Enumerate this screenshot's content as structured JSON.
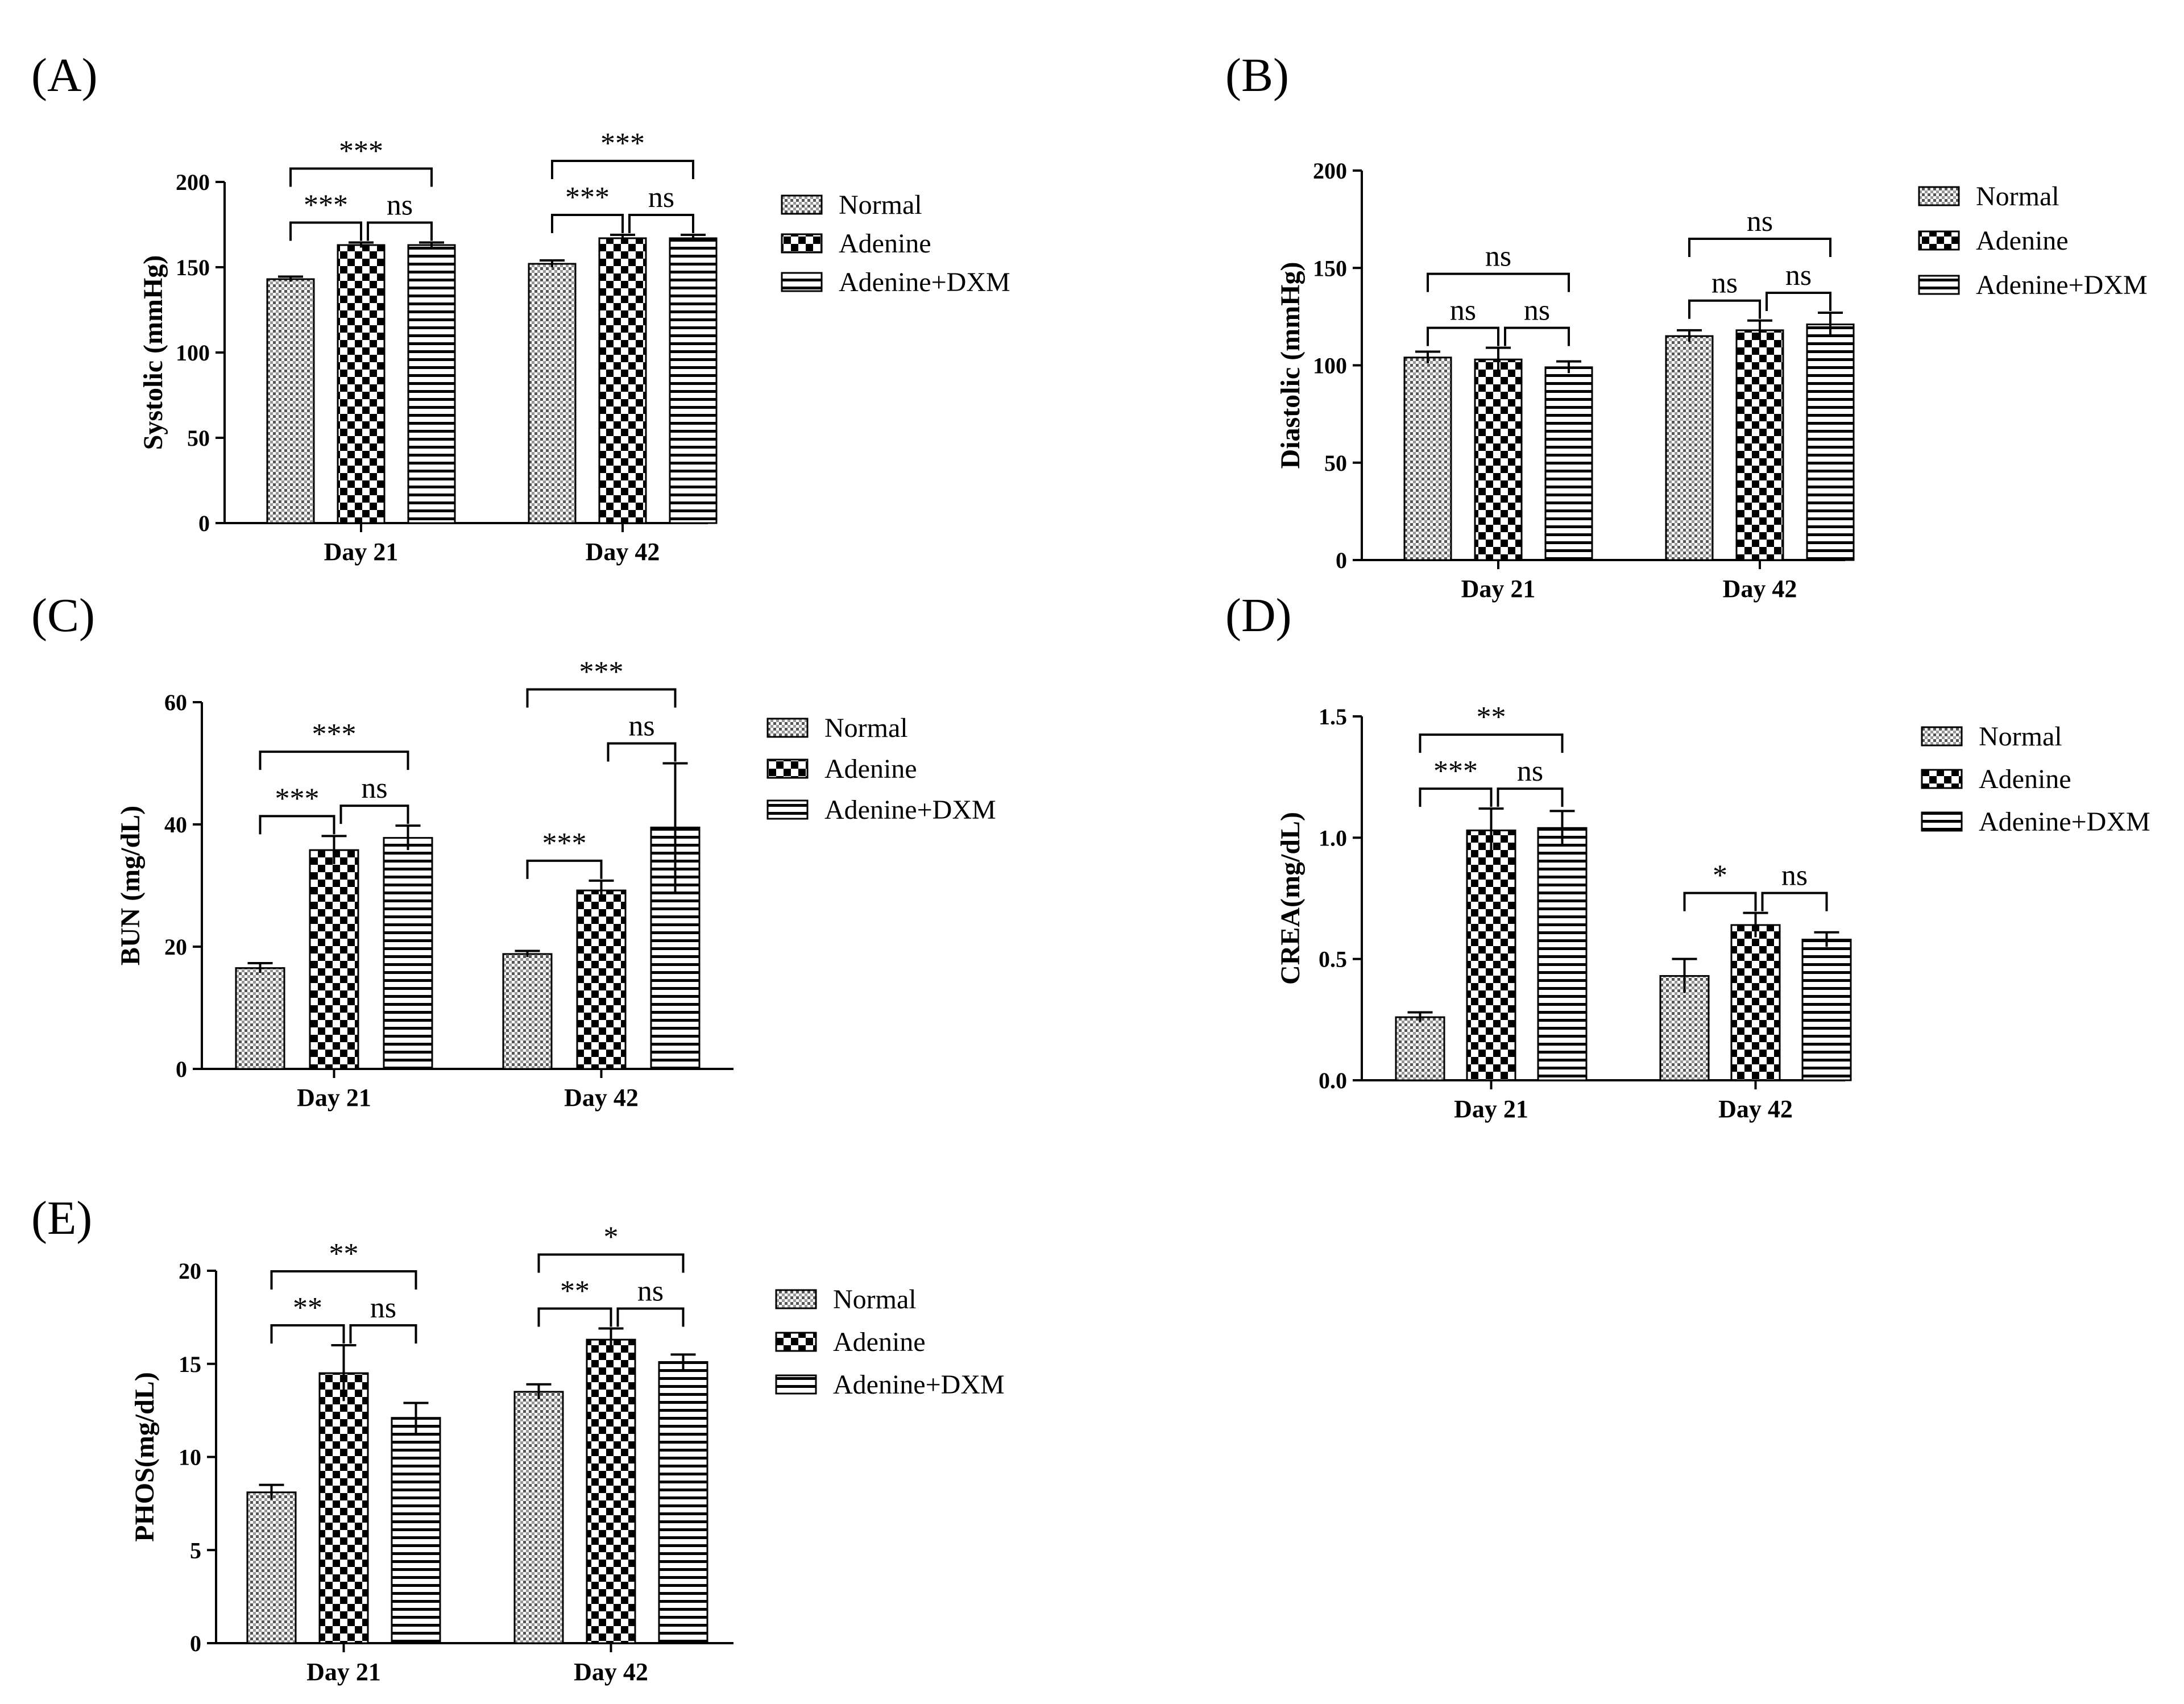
{
  "figure": {
    "patterns": {
      "Normal": "dots",
      "Adenine": "checker",
      "Adenine+DXM": "stripes"
    }
  },
  "chart_data": [
    {
      "panel": "(A)",
      "type": "bar",
      "title": "",
      "xlabel": "",
      "ylabel": "Systolic (mmHg)",
      "categories": [
        "Day 21",
        "Day 42"
      ],
      "ylim": [
        0,
        200
      ],
      "yticks": [
        "0",
        "50",
        "100",
        "150",
        "200"
      ],
      "series": [
        {
          "name": "Normal",
          "values": [
            143,
            152
          ],
          "errors": [
            1.5,
            2
          ]
        },
        {
          "name": "Adenine",
          "values": [
            163,
            167
          ],
          "errors": [
            1.5,
            2
          ]
        },
        {
          "name": "Adenine+DXM",
          "values": [
            163,
            167
          ],
          "errors": [
            1.5,
            2
          ]
        }
      ],
      "annotations": [
        {
          "label": "***",
          "cat": 0,
          "from": 0,
          "to": 1,
          "level": 0
        },
        {
          "label": "ns",
          "cat": 0,
          "from": 1,
          "to": 2,
          "level": 0
        },
        {
          "label": "***",
          "cat": 0,
          "from": 0,
          "to": 2,
          "level": 1
        },
        {
          "label": "***",
          "cat": 1,
          "from": 0,
          "to": 1,
          "level": 0
        },
        {
          "label": "ns",
          "cat": 1,
          "from": 1,
          "to": 2,
          "level": 0
        },
        {
          "label": "***",
          "cat": 1,
          "from": 0,
          "to": 2,
          "level": 1
        }
      ]
    },
    {
      "panel": "(B)",
      "type": "bar",
      "title": "",
      "xlabel": "",
      "ylabel": "Diastolic (mmHg)",
      "categories": [
        "Day 21",
        "Day 42"
      ],
      "ylim": [
        0,
        200
      ],
      "yticks": [
        "0",
        "50",
        "100",
        "150",
        "200"
      ],
      "series": [
        {
          "name": "Normal",
          "values": [
            104,
            115
          ],
          "errors": [
            3,
            3
          ]
        },
        {
          "name": "Adenine",
          "values": [
            103,
            118
          ],
          "errors": [
            6,
            5
          ]
        },
        {
          "name": "Adenine+DXM",
          "values": [
            99,
            121
          ],
          "errors": [
            3,
            6
          ]
        }
      ],
      "annotations": [
        {
          "label": "ns",
          "cat": 0,
          "from": 0,
          "to": 1,
          "level": 0
        },
        {
          "label": "ns",
          "cat": 0,
          "from": 1,
          "to": 2,
          "level": 0
        },
        {
          "label": "ns",
          "cat": 0,
          "from": 0,
          "to": 2,
          "level": 1
        },
        {
          "label": "ns",
          "cat": 1,
          "from": 0,
          "to": 1,
          "level": 0
        },
        {
          "label": "ns",
          "cat": 1,
          "from": 1,
          "to": 2,
          "level": 0
        },
        {
          "label": "ns",
          "cat": 1,
          "from": 0,
          "to": 2,
          "level": 1
        }
      ]
    },
    {
      "panel": "(C)",
      "type": "bar",
      "title": "",
      "xlabel": "",
      "ylabel": "BUN (mg/dL)",
      "categories": [
        "Day 21",
        "Day 42"
      ],
      "ylim": [
        0,
        60
      ],
      "yticks": [
        "0",
        "20",
        "40",
        "60"
      ],
      "series": [
        {
          "name": "Normal",
          "values": [
            16.5,
            18.8
          ],
          "errors": [
            0.8,
            0.5
          ]
        },
        {
          "name": "Adenine",
          "values": [
            35.8,
            29.2
          ],
          "errors": [
            2.3,
            1.6
          ]
        },
        {
          "name": "Adenine+DXM",
          "values": [
            37.8,
            39.5
          ],
          "errors": [
            2,
            10.5
          ]
        }
      ],
      "annotations": [
        {
          "label": "***",
          "cat": 0,
          "from": 0,
          "to": 1,
          "level": 0
        },
        {
          "label": "ns",
          "cat": 0,
          "from": 1,
          "to": 2,
          "level": 0
        },
        {
          "label": "***",
          "cat": 0,
          "from": 0,
          "to": 2,
          "level": 1
        },
        {
          "label": "***",
          "cat": 1,
          "from": 0,
          "to": 1,
          "level": 0
        },
        {
          "label": "ns",
          "cat": 1,
          "from": 1,
          "to": 2,
          "level": 0
        },
        {
          "label": "***",
          "cat": 1,
          "from": 0,
          "to": 2,
          "level": 1
        }
      ]
    },
    {
      "panel": "(D)",
      "type": "bar",
      "title": "",
      "xlabel": "",
      "ylabel": "CREA(mg/dL)",
      "categories": [
        "Day 21",
        "Day 42"
      ],
      "ylim": [
        0,
        1.5
      ],
      "yticks": [
        "0.0",
        "0.5",
        "1.0",
        "1.5"
      ],
      "series": [
        {
          "name": "Normal",
          "values": [
            0.26,
            0.43
          ],
          "errors": [
            0.02,
            0.07
          ]
        },
        {
          "name": "Adenine",
          "values": [
            1.03,
            0.64
          ],
          "errors": [
            0.09,
            0.05
          ]
        },
        {
          "name": "Adenine+DXM",
          "values": [
            1.04,
            0.58
          ],
          "errors": [
            0.07,
            0.03
          ]
        }
      ],
      "annotations": [
        {
          "label": "***",
          "cat": 0,
          "from": 0,
          "to": 1,
          "level": 0
        },
        {
          "label": "ns",
          "cat": 0,
          "from": 1,
          "to": 2,
          "level": 0
        },
        {
          "label": "**",
          "cat": 0,
          "from": 0,
          "to": 2,
          "level": 1
        },
        {
          "label": "*",
          "cat": 1,
          "from": 0,
          "to": 1,
          "level": 0
        },
        {
          "label": "ns",
          "cat": 1,
          "from": 1,
          "to": 2,
          "level": 0
        }
      ]
    },
    {
      "panel": "(E)",
      "type": "bar",
      "title": "",
      "xlabel": "",
      "ylabel": "PHOS(mg/dL)",
      "categories": [
        "Day 21",
        "Day 42"
      ],
      "ylim": [
        0,
        20
      ],
      "yticks": [
        "0",
        "5",
        "10",
        "15",
        "20"
      ],
      "series": [
        {
          "name": "Normal",
          "values": [
            8.1,
            13.5
          ],
          "errors": [
            0.4,
            0.4
          ]
        },
        {
          "name": "Adenine",
          "values": [
            14.5,
            16.3
          ],
          "errors": [
            1.5,
            0.6
          ]
        },
        {
          "name": "Adenine+DXM",
          "values": [
            12.1,
            15.1
          ],
          "errors": [
            0.8,
            0.4
          ]
        }
      ],
      "annotations": [
        {
          "label": "**",
          "cat": 0,
          "from": 0,
          "to": 1,
          "level": 0
        },
        {
          "label": "ns",
          "cat": 0,
          "from": 1,
          "to": 2,
          "level": 0
        },
        {
          "label": "**",
          "cat": 0,
          "from": 0,
          "to": 2,
          "level": 1
        },
        {
          "label": "**",
          "cat": 1,
          "from": 0,
          "to": 1,
          "level": 0
        },
        {
          "label": "ns",
          "cat": 1,
          "from": 1,
          "to": 2,
          "level": 0
        },
        {
          "label": "*",
          "cat": 1,
          "from": 0,
          "to": 2,
          "level": 1
        }
      ]
    }
  ]
}
